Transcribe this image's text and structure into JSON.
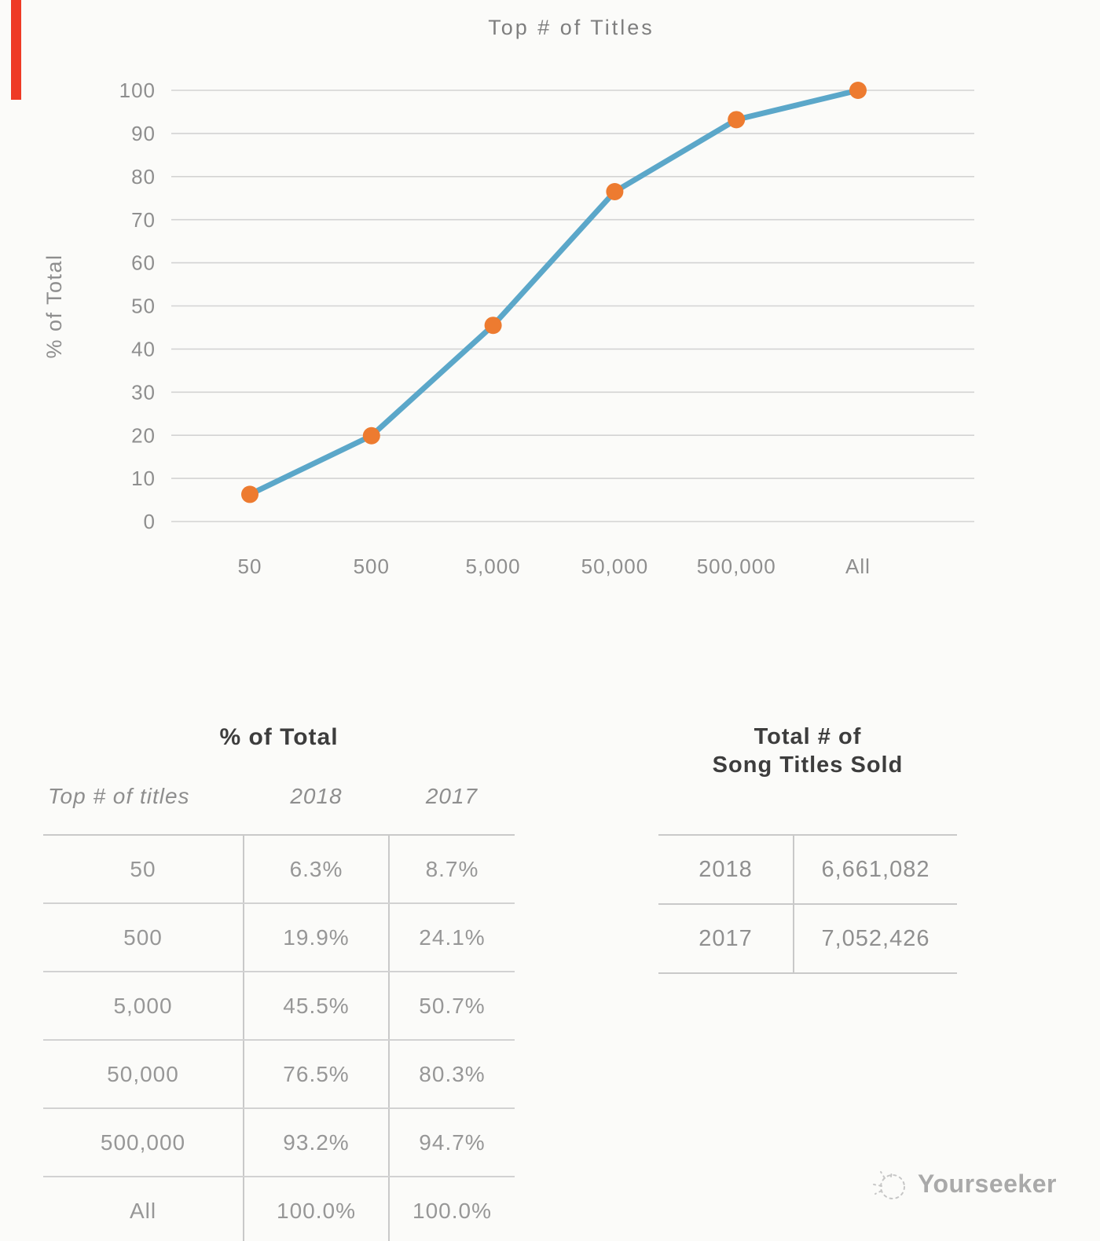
{
  "chart_data": {
    "type": "line",
    "title": "Top # of Titles",
    "xlabel": "",
    "ylabel": "% of Total",
    "categories": [
      "50",
      "500",
      "5,000",
      "50,000",
      "500,000",
      "All"
    ],
    "series": [
      {
        "name": "2018",
        "values": [
          6.3,
          19.9,
          45.5,
          76.5,
          93.2,
          100.0
        ]
      }
    ],
    "ylim": [
      0,
      100
    ],
    "ytick_step": 10,
    "grid": "horizontal",
    "legend": "none",
    "line_color": "#5ba7c9",
    "marker_color": "#ed7b30",
    "grid_color": "#d3d3d3",
    "axis_text_color": "#8e8e8e",
    "title_color": "#7e7e7e"
  },
  "left_table": {
    "title": "% of Total",
    "headers": [
      "Top # of titles",
      "2018",
      "2017"
    ],
    "rows": [
      [
        "50",
        "6.3%",
        "8.7%"
      ],
      [
        "500",
        "19.9%",
        "24.1%"
      ],
      [
        "5,000",
        "45.5%",
        "50.7%"
      ],
      [
        "50,000",
        "76.5%",
        "80.3%"
      ],
      [
        "500,000",
        "93.2%",
        "94.7%"
      ],
      [
        "All",
        "100.0%",
        "100.0%"
      ]
    ]
  },
  "right_table": {
    "title_line1": "Total # of",
    "title_line2": "Song Titles Sold",
    "rows": [
      [
        "2018",
        "6,661,082"
      ],
      [
        "2017",
        "7,052,426"
      ]
    ]
  },
  "watermark": {
    "text": "Yourseeker"
  },
  "colors": {
    "background": "#fbfbf9",
    "table_title": "#3d3d3d",
    "table_text": "#979797",
    "table_border": "#c9c9c9",
    "watermark_text": "#a9a9a9",
    "red_bar": "#ee3a25"
  }
}
